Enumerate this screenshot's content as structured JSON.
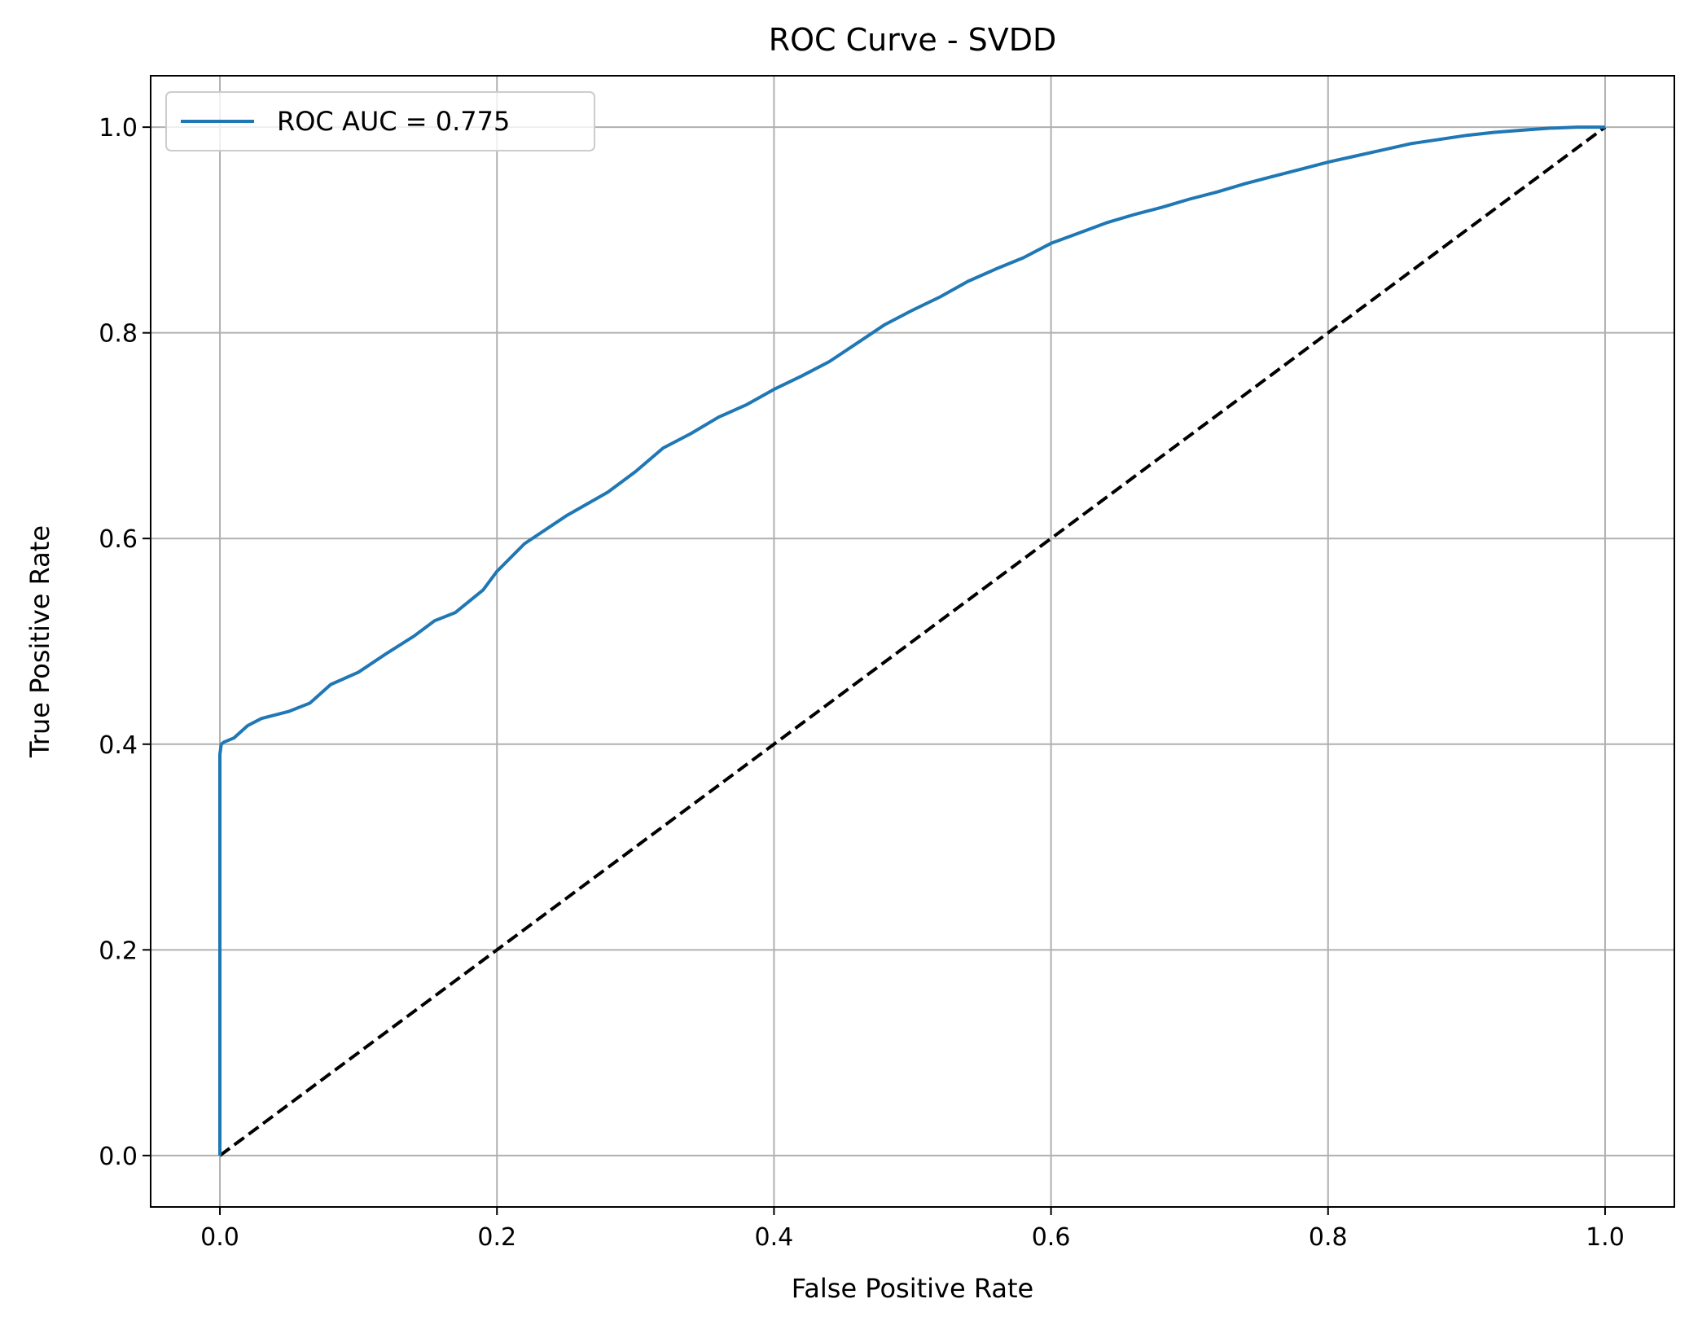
{
  "chart_data": {
    "type": "line",
    "title": "ROC Curve - SVDD",
    "xlabel": "False Positive Rate",
    "ylabel": "True Positive Rate",
    "xlim": [
      -0.05,
      1.05
    ],
    "ylim": [
      -0.05,
      1.05
    ],
    "xticks": [
      0.0,
      0.2,
      0.4,
      0.6,
      0.8,
      1.0
    ],
    "yticks": [
      0.0,
      0.2,
      0.4,
      0.6,
      0.8,
      1.0
    ],
    "xtick_labels": [
      "0.0",
      "0.2",
      "0.4",
      "0.6",
      "0.8",
      "1.0"
    ],
    "ytick_labels": [
      "0.0",
      "0.2",
      "0.4",
      "0.6",
      "0.8",
      "1.0"
    ],
    "grid": true,
    "legend_position": "upper-left",
    "series": [
      {
        "name": "ROC AUC = 0.775",
        "color": "#1f77b4",
        "style": "solid",
        "x": [
          0.0,
          0.0,
          0.001,
          0.003,
          0.01,
          0.02,
          0.03,
          0.05,
          0.065,
          0.08,
          0.1,
          0.12,
          0.14,
          0.155,
          0.17,
          0.19,
          0.2,
          0.22,
          0.25,
          0.28,
          0.3,
          0.32,
          0.34,
          0.36,
          0.38,
          0.4,
          0.42,
          0.44,
          0.46,
          0.48,
          0.5,
          0.52,
          0.54,
          0.56,
          0.58,
          0.6,
          0.62,
          0.64,
          0.66,
          0.68,
          0.7,
          0.72,
          0.74,
          0.76,
          0.78,
          0.8,
          0.82,
          0.84,
          0.86,
          0.88,
          0.9,
          0.92,
          0.94,
          0.96,
          0.98,
          1.0
        ],
        "y": [
          0.0,
          0.39,
          0.4,
          0.402,
          0.406,
          0.418,
          0.425,
          0.432,
          0.44,
          0.458,
          0.47,
          0.488,
          0.505,
          0.52,
          0.528,
          0.55,
          0.568,
          0.595,
          0.622,
          0.645,
          0.665,
          0.688,
          0.702,
          0.718,
          0.73,
          0.745,
          0.758,
          0.772,
          0.79,
          0.808,
          0.822,
          0.835,
          0.85,
          0.862,
          0.873,
          0.887,
          0.897,
          0.907,
          0.915,
          0.922,
          0.93,
          0.937,
          0.945,
          0.952,
          0.959,
          0.966,
          0.972,
          0.978,
          0.984,
          0.988,
          0.992,
          0.995,
          0.997,
          0.999,
          1.0,
          1.0
        ]
      },
      {
        "name": "",
        "color": "#000000",
        "style": "dashed",
        "x": [
          0.0,
          1.0
        ],
        "y": [
          0.0,
          1.0
        ]
      }
    ]
  }
}
